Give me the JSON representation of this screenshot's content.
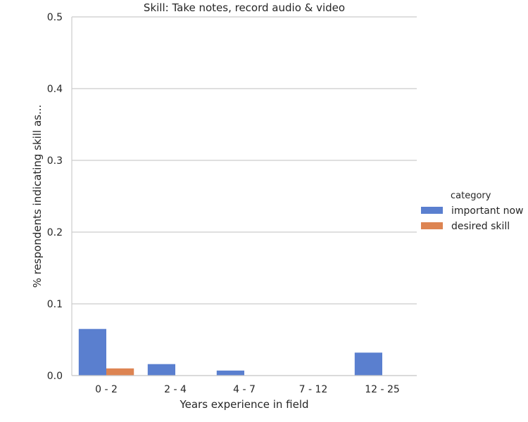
{
  "chart_data": {
    "type": "bar",
    "title": "Skill: Take notes, record audio & video",
    "xlabel": "Years experience in field",
    "ylabel": "% respondents indicating skill as...",
    "categories": [
      "0 - 2",
      "2 - 4",
      "4 - 7",
      "7 - 12",
      "12 - 25"
    ],
    "series": [
      {
        "name": "important now",
        "color": "#5a7fcf",
        "values": [
          0.065,
          0.016,
          0.007,
          0.0,
          0.032
        ]
      },
      {
        "name": "desired skill",
        "color": "#dd8452",
        "values": [
          0.01,
          0.0,
          0.0,
          0.0,
          0.0
        ]
      }
    ],
    "ylim": [
      0,
      0.5
    ],
    "yticks": [
      0.0,
      0.1,
      0.2,
      0.3,
      0.4,
      0.5
    ],
    "ytick_labels": [
      "0.0",
      "0.1",
      "0.2",
      "0.3",
      "0.4",
      "0.5"
    ],
    "grid": true,
    "legend": {
      "title": "category",
      "placement": "right"
    }
  }
}
